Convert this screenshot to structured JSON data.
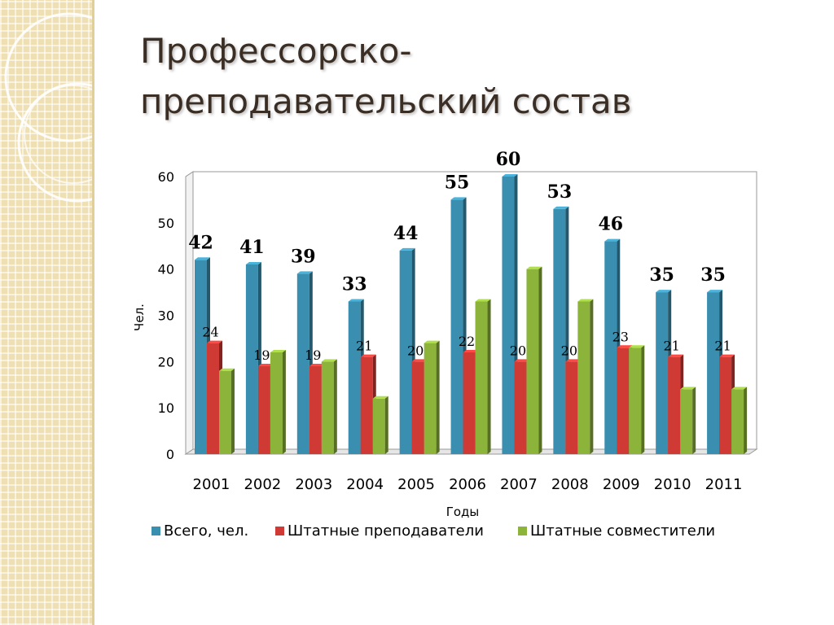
{
  "slide": {
    "title_line1": "Профессорско-",
    "title_line2": "преподавательский состав"
  },
  "chart_data": {
    "type": "bar",
    "title": "",
    "xlabel": "Годы",
    "ylabel": "Чел.",
    "ylim": [
      0,
      60
    ],
    "yticks": [
      0,
      10,
      20,
      30,
      40,
      50,
      60
    ],
    "categories": [
      "2001",
      "2002",
      "2003",
      "2004",
      "2005",
      "2006",
      "2007",
      "2008",
      "2009",
      "2010",
      "2011"
    ],
    "series": [
      {
        "name": "Всего, чел.",
        "color": "#3a8fb0",
        "values": [
          42,
          41,
          39,
          33,
          44,
          55,
          60,
          53,
          46,
          35,
          35
        ],
        "labeled": [
          true,
          true,
          true,
          true,
          true,
          true,
          true,
          true,
          true,
          true,
          true
        ]
      },
      {
        "name": "Штатные преподаватели",
        "color": "#cf3a35",
        "values": [
          24,
          19,
          19,
          21,
          20,
          22,
          20,
          20,
          23,
          21,
          21
        ],
        "labeled": [
          true,
          true,
          true,
          true,
          true,
          true,
          true,
          true,
          true,
          true,
          true
        ]
      },
      {
        "name": "Штатные совместители",
        "color": "#8cb33a",
        "values": [
          18,
          22,
          20,
          12,
          24,
          33,
          40,
          33,
          23,
          14,
          14
        ],
        "labeled": [
          false,
          false,
          false,
          false,
          false,
          false,
          false,
          false,
          false,
          false,
          false
        ]
      }
    ],
    "legend": {
      "position": "bottom"
    },
    "grid": true
  }
}
